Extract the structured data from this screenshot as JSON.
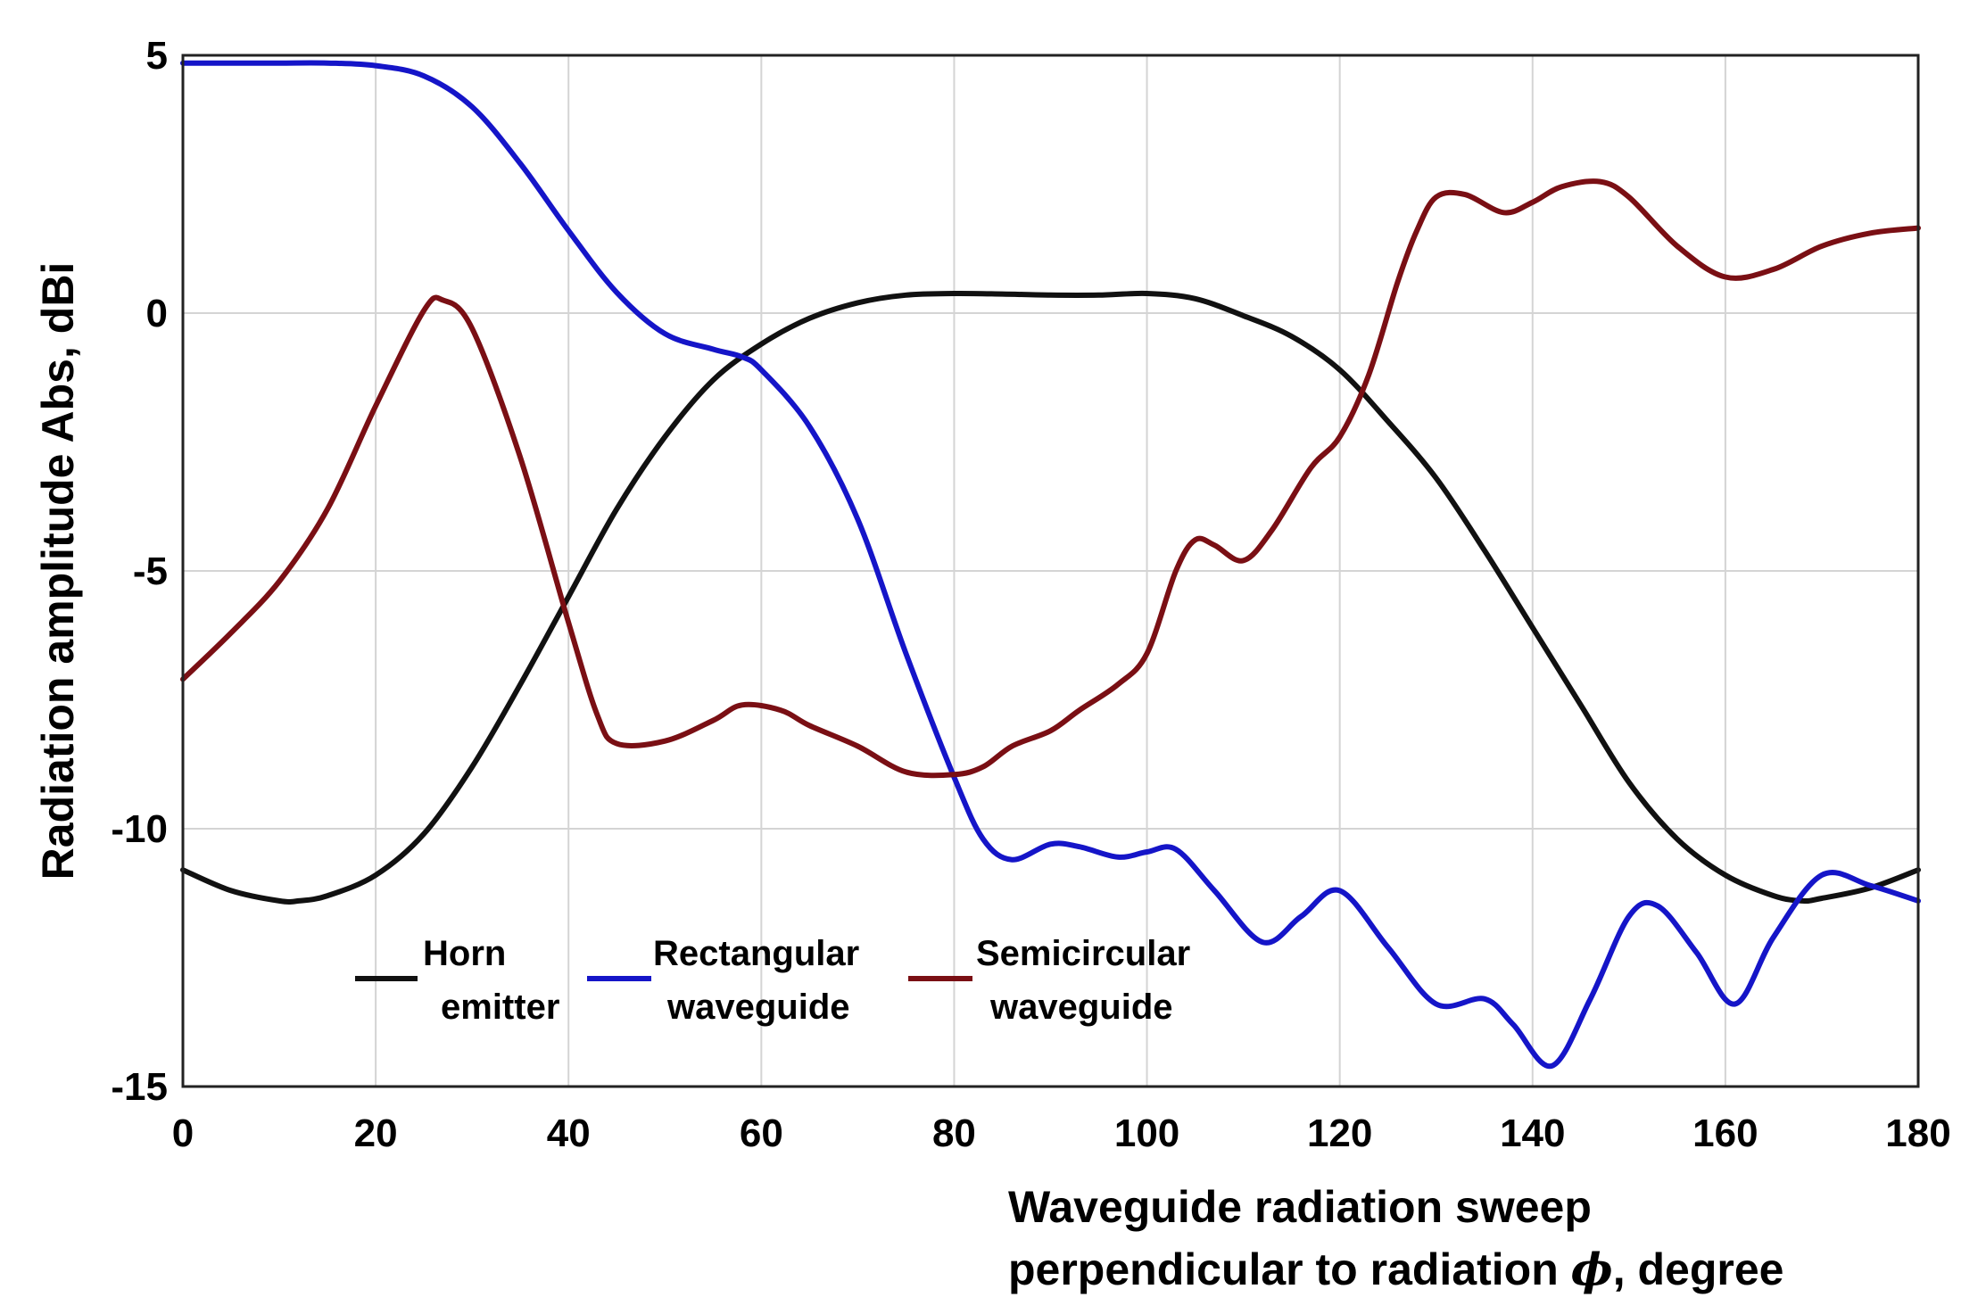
{
  "chart_data": {
    "type": "line",
    "title": "",
    "xlabel_line1": "Waveguide radiation sweep",
    "xlabel_line2_pre": "perpendicular to radiation ",
    "xlabel_symbol": "ϕ",
    "xlabel_line2_post": ", degree",
    "ylabel": "Radiation amplitude Abs, dBi",
    "xlim": [
      0,
      180
    ],
    "ylim": [
      -15,
      5
    ],
    "xticks": [
      0,
      20,
      40,
      60,
      80,
      100,
      120,
      140,
      160,
      180
    ],
    "yticks": [
      5,
      0,
      -5,
      -10,
      -15
    ],
    "grid": true,
    "legend_position": "lower-left",
    "series": [
      {
        "name": "Horn emitter",
        "legend_lines": [
          "Horn",
          "emitter"
        ],
        "color": "#111111",
        "x": [
          0,
          5,
          10,
          12,
          15,
          20,
          25,
          30,
          35,
          40,
          45,
          50,
          55,
          60,
          65,
          70,
          75,
          80,
          85,
          90,
          95,
          100,
          105,
          110,
          115,
          120,
          125,
          130,
          135,
          140,
          145,
          150,
          155,
          160,
          165,
          168,
          170,
          175,
          180
        ],
        "y": [
          -10.8,
          -11.2,
          -11.4,
          -11.4,
          -11.3,
          -10.9,
          -10.1,
          -8.8,
          -7.2,
          -5.5,
          -3.8,
          -2.4,
          -1.3,
          -0.6,
          -0.1,
          0.2,
          0.35,
          0.38,
          0.37,
          0.35,
          0.35,
          0.38,
          0.28,
          -0.05,
          -0.45,
          -1.1,
          -2.1,
          -3.2,
          -4.6,
          -6.1,
          -7.6,
          -9.1,
          -10.2,
          -10.9,
          -11.3,
          -11.4,
          -11.35,
          -11.15,
          -10.8
        ]
      },
      {
        "name": "Rectangular waveguide",
        "legend_lines": [
          "Rectangular",
          "waveguide"
        ],
        "color": "#1515c8",
        "x": [
          0,
          5,
          10,
          15,
          20,
          25,
          30,
          35,
          40,
          45,
          50,
          55,
          58,
          60,
          65,
          70,
          75,
          80,
          83,
          86,
          90,
          93,
          97,
          100,
          103,
          107,
          112,
          116,
          120,
          125,
          130,
          135,
          138,
          142,
          146,
          150,
          153,
          157,
          161,
          165,
          170,
          175,
          180
        ],
        "y": [
          4.85,
          4.85,
          4.85,
          4.85,
          4.8,
          4.6,
          4.0,
          2.9,
          1.6,
          0.4,
          -0.4,
          -0.7,
          -0.85,
          -1.1,
          -2.2,
          -4.0,
          -6.6,
          -9.0,
          -10.2,
          -10.6,
          -10.3,
          -10.35,
          -10.55,
          -10.45,
          -10.4,
          -11.2,
          -12.2,
          -11.7,
          -11.2,
          -12.3,
          -13.4,
          -13.3,
          -13.8,
          -14.6,
          -13.3,
          -11.7,
          -11.5,
          -12.4,
          -13.4,
          -12.1,
          -10.9,
          -11.1,
          -11.4
        ]
      },
      {
        "name": "Semicircular waveguide",
        "legend_lines": [
          "Semicircular",
          "waveguide"
        ],
        "color": "#7a0f14",
        "x": [
          0,
          5,
          10,
          15,
          20,
          25,
          27,
          30,
          35,
          40,
          43,
          45,
          50,
          55,
          58,
          62,
          65,
          70,
          75,
          80,
          83,
          86,
          90,
          93,
          97,
          100,
          103,
          105,
          107,
          110,
          113,
          117,
          120,
          123,
          126,
          128,
          130,
          133,
          137,
          140,
          143,
          147,
          150,
          155,
          160,
          165,
          170,
          175,
          180
        ],
        "y": [
          -7.1,
          -6.2,
          -5.2,
          -3.8,
          -1.8,
          0.05,
          0.25,
          -0.3,
          -2.8,
          -6.0,
          -7.8,
          -8.35,
          -8.3,
          -7.9,
          -7.6,
          -7.7,
          -8.0,
          -8.4,
          -8.9,
          -8.95,
          -8.8,
          -8.4,
          -8.1,
          -7.7,
          -7.2,
          -6.6,
          -5.0,
          -4.4,
          -4.5,
          -4.8,
          -4.2,
          -3.0,
          -2.4,
          -1.2,
          0.6,
          1.6,
          2.25,
          2.3,
          1.95,
          2.15,
          2.45,
          2.55,
          2.25,
          1.3,
          0.7,
          0.85,
          1.3,
          1.55,
          1.65
        ]
      }
    ]
  }
}
